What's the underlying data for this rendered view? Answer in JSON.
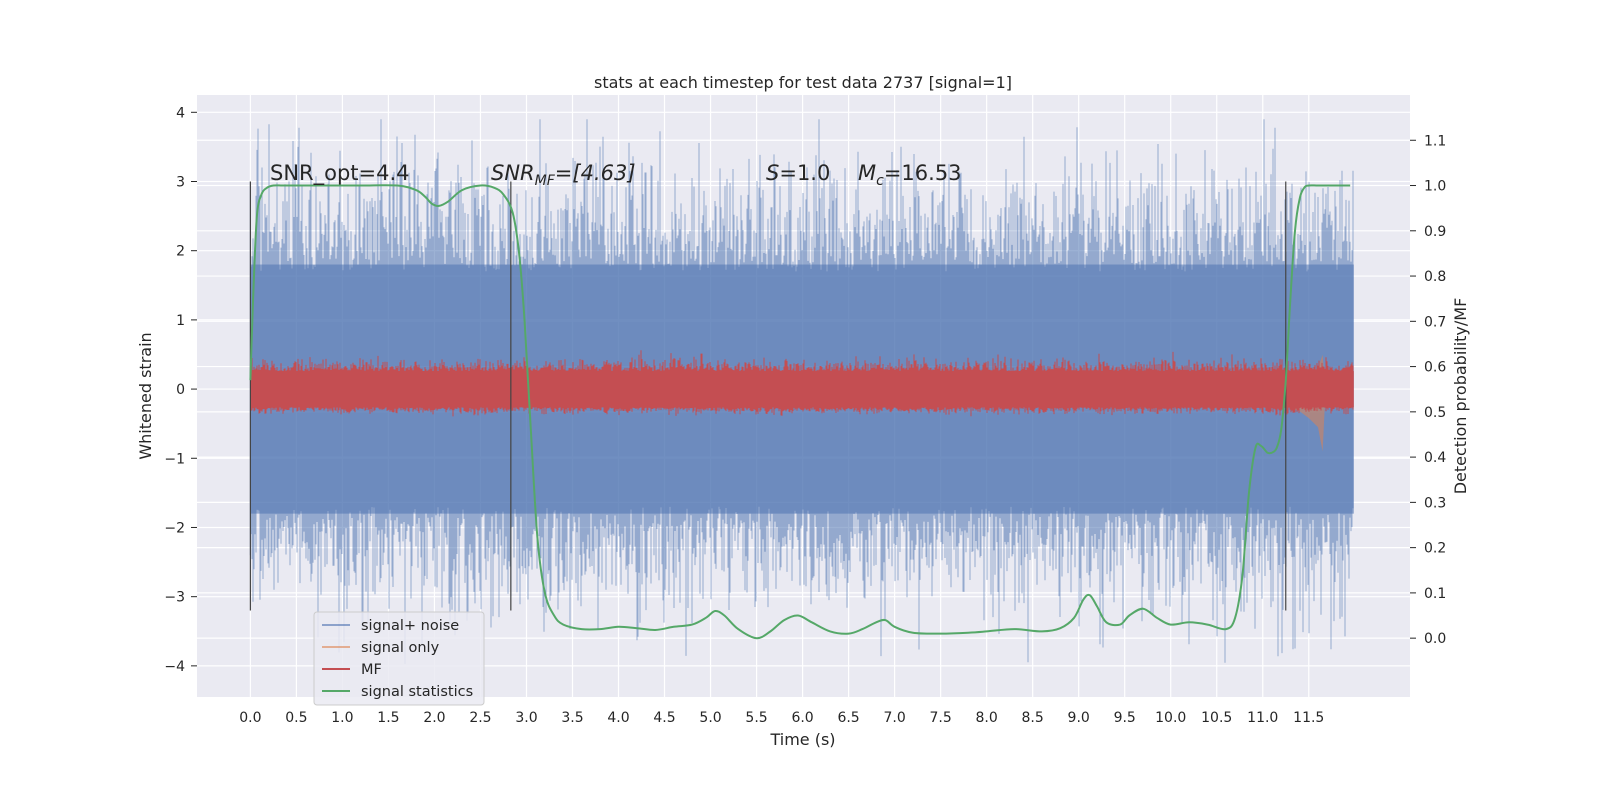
{
  "chart_data": {
    "type": "line",
    "title": "stats at each timestep for test data 2737 [signal=1]",
    "xlabel": "Time (s)",
    "ylabel": "Whitened strain",
    "ylabel_right": "Detection probability/MF",
    "xlim": [
      -0.58,
      12.6
    ],
    "ylim": [
      -4.45,
      4.25
    ],
    "ylim_right": [
      -0.13,
      1.2
    ],
    "x_ticks": [
      0.0,
      0.5,
      1.0,
      1.5,
      2.0,
      2.5,
      3.0,
      3.5,
      4.0,
      4.5,
      5.0,
      5.5,
      6.0,
      6.5,
      7.0,
      7.5,
      8.0,
      8.5,
      9.0,
      9.5,
      10.0,
      10.5,
      11.0,
      11.5
    ],
    "x_tick_labels": [
      "0.0",
      "0.5",
      "1.0",
      "1.5",
      "2.0",
      "2.5",
      "3.0",
      "3.5",
      "4.0",
      "4.5",
      "5.0",
      "5.5",
      "6.0",
      "6.5",
      "7.0",
      "7.5",
      "8.0",
      "8.5",
      "9.0",
      "9.5",
      "10.0",
      "10.5",
      "11.0",
      "11.5"
    ],
    "y_ticks": [
      -4,
      -3,
      -2,
      -1,
      0,
      1,
      2,
      3,
      4
    ],
    "y_tick_labels": [
      "−4",
      "−3",
      "−2",
      "−1",
      "0",
      "1",
      "2",
      "3",
      "4"
    ],
    "y_ticks_right": [
      0.0,
      0.1,
      0.2,
      0.3,
      0.4,
      0.5,
      0.6,
      0.7,
      0.8,
      0.9,
      1.0,
      1.1
    ],
    "y_tick_labels_right": [
      "0.0",
      "0.1",
      "0.2",
      "0.3",
      "0.4",
      "0.5",
      "0.6",
      "0.7",
      "0.8",
      "0.9",
      "1.0",
      "1.1"
    ],
    "grid": true,
    "legend_position": "lower-left",
    "annotations": {
      "snr_opt": "SNR_opt=4.4",
      "snr_mf_main": "SNR",
      "snr_mf_sub": "MF",
      "snr_mf_rest": "=[4.63]",
      "s_var": "S",
      "s_rest": "=1.0",
      "mc_var": "M",
      "mc_sub": "c",
      "mc_rest": "=16.53"
    },
    "vertical_markers": [
      {
        "x": 0.0,
        "y_range": [
          -3.2,
          3.0
        ]
      },
      {
        "x": 2.83,
        "y_range": [
          -3.2,
          3.0
        ]
      },
      {
        "x": 11.25,
        "y_range": [
          -3.2,
          3.0
        ]
      }
    ],
    "series": [
      {
        "name": "signal+ noise",
        "color": "#4c72b0",
        "alpha": 0.5,
        "axis": "left",
        "x_range": [
          0.0,
          11.99
        ],
        "band_core": [
          -1.8,
          1.8
        ],
        "envelope": [
          -4.1,
          3.9
        ]
      },
      {
        "name": "signal only",
        "color": "#dd8452",
        "alpha": 0.55,
        "axis": "left",
        "x": [
          10.0,
          10.5,
          10.8,
          11.0,
          11.2,
          11.4,
          11.5,
          11.6,
          11.65,
          11.68
        ],
        "envelope_abs": [
          0.02,
          0.05,
          0.1,
          0.15,
          0.22,
          0.32,
          0.42,
          0.55,
          0.9,
          0.1
        ]
      },
      {
        "name": "MF",
        "color": "#c44e52",
        "axis": "right",
        "x_range": [
          0.0,
          11.99
        ],
        "band": [
          0.51,
          0.59
        ],
        "peak": 0.65
      },
      {
        "name": "signal statistics",
        "color": "#55a868",
        "axis": "right",
        "x": [
          0.0,
          0.03,
          0.07,
          0.12,
          0.18,
          0.25,
          0.35,
          0.5,
          0.8,
          1.2,
          1.6,
          1.8,
          1.9,
          1.97,
          2.05,
          2.15,
          2.3,
          2.5,
          2.65,
          2.75,
          2.85,
          2.92,
          2.98,
          3.05,
          3.12,
          3.2,
          3.3,
          3.4,
          3.6,
          3.8,
          4.0,
          4.2,
          4.4,
          4.6,
          4.8,
          4.95,
          5.05,
          5.15,
          5.3,
          5.5,
          5.65,
          5.8,
          5.95,
          6.1,
          6.3,
          6.5,
          6.65,
          6.8,
          6.9,
          7.0,
          7.2,
          7.5,
          7.8,
          8.0,
          8.3,
          8.6,
          8.8,
          8.95,
          9.05,
          9.12,
          9.2,
          9.3,
          9.45,
          9.55,
          9.7,
          9.85,
          10.0,
          10.2,
          10.4,
          10.6,
          10.7,
          10.78,
          10.85,
          10.92,
          10.98,
          11.05,
          11.1,
          11.15,
          11.2,
          11.25,
          11.3,
          11.35,
          11.4,
          11.45,
          11.5,
          11.6,
          11.75,
          11.95
        ],
        "y": [
          0.57,
          0.75,
          0.93,
          0.98,
          0.995,
          1.0,
          1.0,
          1.0,
          1.0,
          1.0,
          1.0,
          0.99,
          0.975,
          0.96,
          0.955,
          0.965,
          0.99,
          1.0,
          0.995,
          0.98,
          0.94,
          0.85,
          0.7,
          0.45,
          0.22,
          0.1,
          0.05,
          0.03,
          0.02,
          0.02,
          0.025,
          0.022,
          0.018,
          0.025,
          0.03,
          0.045,
          0.06,
          0.05,
          0.02,
          0.0,
          0.015,
          0.04,
          0.05,
          0.035,
          0.015,
          0.01,
          0.02,
          0.035,
          0.04,
          0.025,
          0.012,
          0.01,
          0.012,
          0.015,
          0.02,
          0.015,
          0.022,
          0.045,
          0.085,
          0.095,
          0.07,
          0.035,
          0.03,
          0.05,
          0.065,
          0.045,
          0.03,
          0.035,
          0.03,
          0.02,
          0.045,
          0.14,
          0.32,
          0.42,
          0.425,
          0.41,
          0.41,
          0.42,
          0.46,
          0.57,
          0.75,
          0.9,
          0.97,
          0.995,
          1.0,
          1.0,
          1.0,
          1.0
        ]
      }
    ]
  }
}
